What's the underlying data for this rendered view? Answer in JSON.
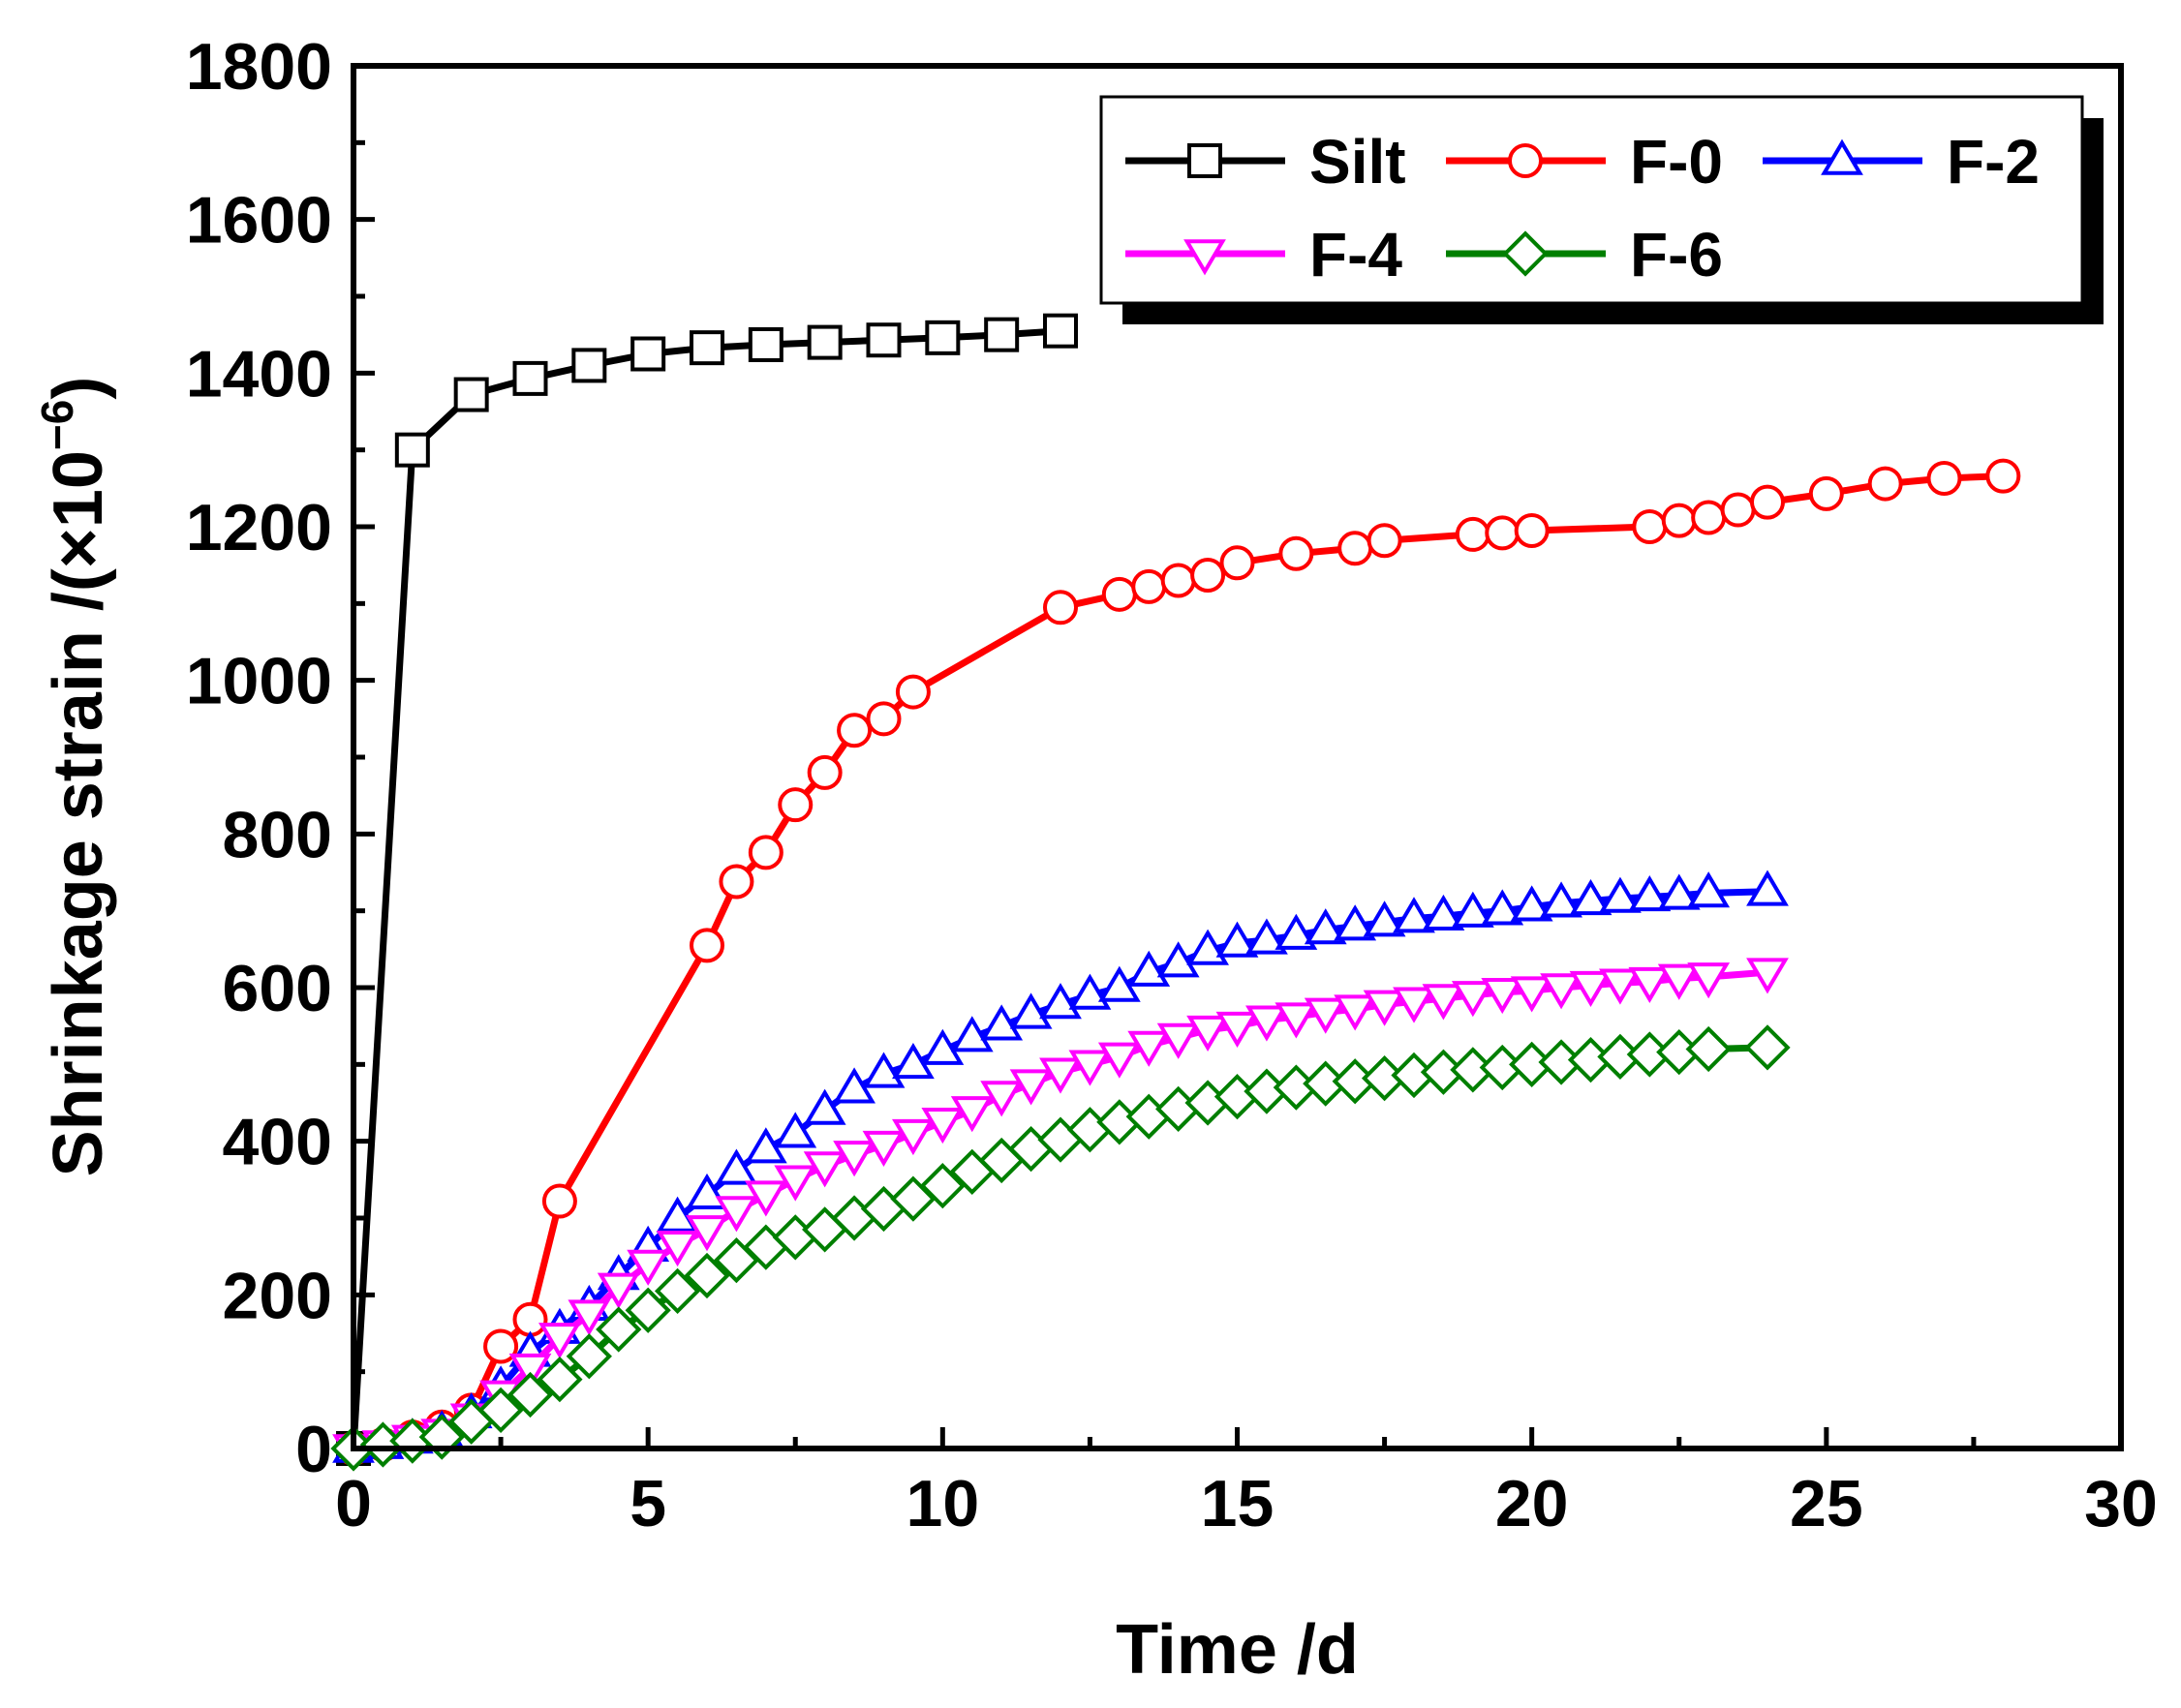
{
  "chart_data": {
    "type": "line",
    "xlabel": "Time /d",
    "ylabel": "Shrinkage strain /(×10",
    "ylabel_exp": "−6",
    "ylabel_close": ")",
    "xlim": [
      0,
      30
    ],
    "ylim": [
      0,
      1800
    ],
    "x_ticks": [
      "0",
      "5",
      "10",
      "15",
      "20",
      "25",
      "30"
    ],
    "y_ticks": [
      "0",
      "200",
      "400",
      "600",
      "800",
      "1000",
      "1200",
      "1400",
      "1600",
      "1800"
    ],
    "grid": false,
    "legend_position": "top-right",
    "series": [
      {
        "name": "Silt",
        "color": "#000000",
        "marker": "square",
        "points": [
          [
            0,
            0
          ],
          [
            1,
            1300
          ],
          [
            2,
            1372
          ],
          [
            3,
            1393
          ],
          [
            4,
            1410
          ],
          [
            5,
            1425
          ],
          [
            6,
            1433
          ],
          [
            7,
            1437
          ],
          [
            8,
            1440
          ],
          [
            9,
            1443
          ],
          [
            10,
            1446
          ],
          [
            11,
            1450
          ],
          [
            12,
            1455
          ]
        ]
      },
      {
        "name": "F-0",
        "color": "#ff0000",
        "marker": "circle",
        "points": [
          [
            0,
            0
          ],
          [
            0.5,
            5
          ],
          [
            1,
            15
          ],
          [
            1.5,
            28
          ],
          [
            2,
            50
          ],
          [
            2.5,
            133
          ],
          [
            3,
            168
          ],
          [
            3.5,
            322
          ],
          [
            6,
            655
          ],
          [
            6.5,
            738
          ],
          [
            7,
            776
          ],
          [
            7.5,
            838
          ],
          [
            8,
            880
          ],
          [
            8.5,
            935
          ],
          [
            9,
            950
          ],
          [
            9.5,
            985
          ],
          [
            12,
            1095
          ],
          [
            13,
            1112
          ],
          [
            13.5,
            1122
          ],
          [
            14,
            1130
          ],
          [
            14.5,
            1137
          ],
          [
            15,
            1153
          ],
          [
            16,
            1165
          ],
          [
            17,
            1172
          ],
          [
            17.5,
            1182
          ],
          [
            19,
            1190
          ],
          [
            19.5,
            1192
          ],
          [
            20,
            1195
          ],
          [
            22,
            1200
          ],
          [
            22.5,
            1208
          ],
          [
            23,
            1212
          ],
          [
            23.5,
            1222
          ],
          [
            24,
            1232
          ],
          [
            25,
            1243
          ],
          [
            26,
            1256
          ],
          [
            27,
            1263
          ],
          [
            28,
            1266
          ]
        ]
      },
      {
        "name": "F-2",
        "color": "#0000ff",
        "marker": "triangle-up",
        "points": [
          [
            0,
            0
          ],
          [
            0.5,
            5
          ],
          [
            1,
            12
          ],
          [
            1.5,
            22
          ],
          [
            2,
            45
          ],
          [
            2.5,
            80
          ],
          [
            3,
            125
          ],
          [
            3.5,
            155
          ],
          [
            4,
            185
          ],
          [
            4.5,
            225
          ],
          [
            5,
            262
          ],
          [
            5.5,
            300
          ],
          [
            6,
            330
          ],
          [
            6.5,
            362
          ],
          [
            7,
            390
          ],
          [
            7.5,
            410
          ],
          [
            8,
            440
          ],
          [
            8.5,
            468
          ],
          [
            9,
            488
          ],
          [
            9.5,
            500
          ],
          [
            10,
            518
          ],
          [
            10.5,
            535
          ],
          [
            11,
            550
          ],
          [
            11.5,
            565
          ],
          [
            12,
            578
          ],
          [
            12.5,
            590
          ],
          [
            13,
            600
          ],
          [
            13.5,
            620
          ],
          [
            14,
            632
          ],
          [
            14.5,
            648
          ],
          [
            15,
            658
          ],
          [
            15.5,
            662
          ],
          [
            16,
            668
          ],
          [
            16.5,
            675
          ],
          [
            17,
            680
          ],
          [
            17.5,
            685
          ],
          [
            18,
            690
          ],
          [
            18.5,
            693
          ],
          [
            19,
            697
          ],
          [
            19.5,
            700
          ],
          [
            20,
            705
          ],
          [
            20.5,
            710
          ],
          [
            21,
            713
          ],
          [
            21.5,
            716
          ],
          [
            22,
            718
          ],
          [
            22.5,
            720
          ],
          [
            23,
            723
          ],
          [
            24,
            725
          ]
        ]
      },
      {
        "name": "F-4",
        "color": "#ff00ff",
        "marker": "triangle-down",
        "points": [
          [
            0,
            0
          ],
          [
            0.5,
            5
          ],
          [
            1,
            12
          ],
          [
            1.5,
            20
          ],
          [
            2,
            40
          ],
          [
            2.5,
            70
          ],
          [
            3,
            105
          ],
          [
            3.5,
            145
          ],
          [
            4,
            175
          ],
          [
            4.5,
            210
          ],
          [
            5,
            240
          ],
          [
            5.5,
            265
          ],
          [
            6,
            285
          ],
          [
            6.5,
            310
          ],
          [
            7,
            330
          ],
          [
            7.5,
            350
          ],
          [
            8,
            368
          ],
          [
            8.5,
            382
          ],
          [
            9,
            395
          ],
          [
            9.5,
            410
          ],
          [
            10,
            425
          ],
          [
            10.5,
            440
          ],
          [
            11,
            460
          ],
          [
            11.5,
            475
          ],
          [
            12,
            490
          ],
          [
            12.5,
            500
          ],
          [
            13,
            510
          ],
          [
            13.5,
            525
          ],
          [
            14,
            535
          ],
          [
            14.5,
            545
          ],
          [
            15,
            550
          ],
          [
            15.5,
            558
          ],
          [
            16,
            562
          ],
          [
            16.5,
            568
          ],
          [
            17,
            572
          ],
          [
            17.5,
            578
          ],
          [
            18,
            582
          ],
          [
            18.5,
            586
          ],
          [
            19,
            590
          ],
          [
            19.5,
            594
          ],
          [
            20,
            596
          ],
          [
            20.5,
            600
          ],
          [
            21,
            603
          ],
          [
            21.5,
            606
          ],
          [
            22,
            608
          ],
          [
            22.5,
            612
          ],
          [
            23,
            614
          ],
          [
            24,
            620
          ]
        ]
      },
      {
        "name": "F-6",
        "color": "#007f00",
        "marker": "diamond",
        "points": [
          [
            0,
            0
          ],
          [
            0.5,
            5
          ],
          [
            1,
            10
          ],
          [
            1.5,
            15
          ],
          [
            2,
            35
          ],
          [
            2.5,
            50
          ],
          [
            3,
            70
          ],
          [
            3.5,
            90
          ],
          [
            4,
            120
          ],
          [
            4.5,
            155
          ],
          [
            5,
            180
          ],
          [
            5.5,
            205
          ],
          [
            6,
            225
          ],
          [
            6.5,
            245
          ],
          [
            7,
            262
          ],
          [
            7.5,
            275
          ],
          [
            8,
            285
          ],
          [
            8.5,
            300
          ],
          [
            9,
            312
          ],
          [
            9.5,
            325
          ],
          [
            10,
            342
          ],
          [
            10.5,
            360
          ],
          [
            11,
            375
          ],
          [
            11.5,
            390
          ],
          [
            12,
            402
          ],
          [
            12.5,
            415
          ],
          [
            13,
            425
          ],
          [
            13.5,
            432
          ],
          [
            14,
            442
          ],
          [
            14.5,
            450
          ],
          [
            15,
            458
          ],
          [
            15.5,
            465
          ],
          [
            16,
            470
          ],
          [
            16.5,
            475
          ],
          [
            17,
            478
          ],
          [
            17.5,
            482
          ],
          [
            18,
            486
          ],
          [
            18.5,
            490
          ],
          [
            19,
            493
          ],
          [
            19.5,
            496
          ],
          [
            20,
            500
          ],
          [
            20.5,
            503
          ],
          [
            21,
            506
          ],
          [
            21.5,
            510
          ],
          [
            22,
            513
          ],
          [
            22.5,
            516
          ],
          [
            23,
            520
          ],
          [
            24,
            522
          ]
        ]
      }
    ]
  }
}
